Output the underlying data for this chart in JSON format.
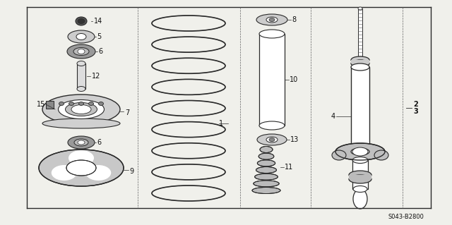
{
  "bg_color": "#f0f0eb",
  "line_color": "#2a2a2a",
  "border_color": "#444444",
  "text_color": "#111111",
  "diagram_code": "S043-B2800",
  "figsize": [
    6.4,
    3.19
  ],
  "dpi": 100
}
